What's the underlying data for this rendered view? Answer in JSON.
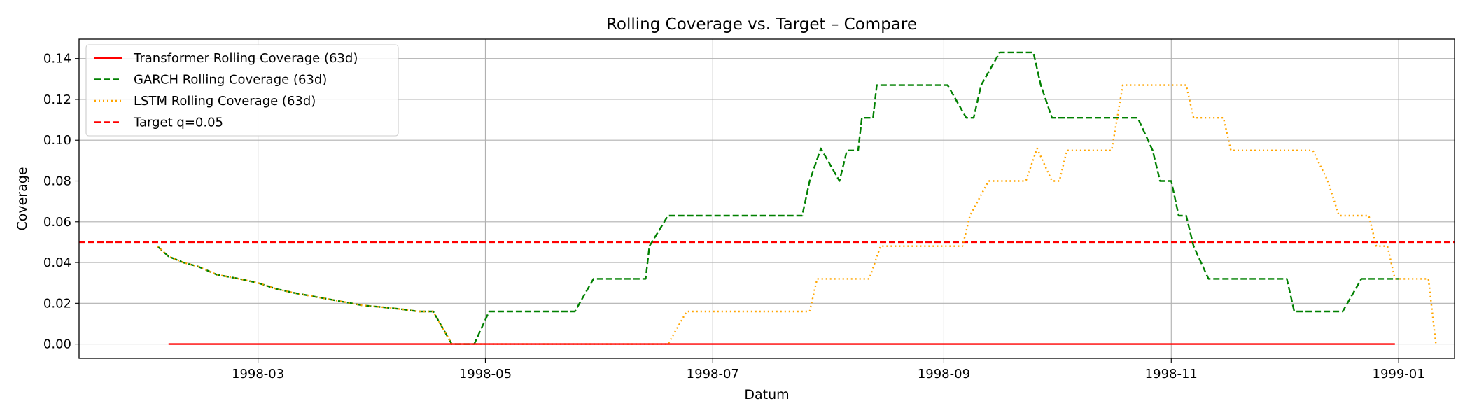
{
  "chart_data": {
    "type": "line",
    "title": "Rolling Coverage vs. Target – Compare",
    "xlabel": "Datum",
    "ylabel": "Coverage",
    "xlim": [
      "1998-01-12",
      "1999-01-16"
    ],
    "ylim": [
      -0.007,
      0.1495
    ],
    "x_ticks": [
      "1998-03-01",
      "1998-05-01",
      "1998-07-01",
      "1998-09-01",
      "1998-11-01",
      "1999-01-01"
    ],
    "x_tick_labels": [
      "1998-03",
      "1998-05",
      "1998-07",
      "1998-09",
      "1998-11",
      "1999-01"
    ],
    "y_ticks": [
      0.0,
      0.02,
      0.04,
      0.06,
      0.08,
      0.1,
      0.12,
      0.14
    ],
    "y_tick_labels": [
      "0.00",
      "0.02",
      "0.04",
      "0.06",
      "0.08",
      "0.10",
      "0.12",
      "0.14"
    ],
    "grid": true,
    "legend_position": "top-left",
    "series": [
      {
        "name": "Transformer Rolling Coverage (63d)",
        "color": "#ff0000",
        "style": "solid",
        "points": [
          [
            "1998-02-05",
            0.0
          ],
          [
            "1998-12-31",
            0.0
          ]
        ]
      },
      {
        "name": "GARCH Rolling Coverage (63d)",
        "color": "#008000",
        "style": "dashed",
        "points": [
          [
            "1998-02-02",
            0.048
          ],
          [
            "1998-02-05",
            0.043
          ],
          [
            "1998-02-09",
            0.04
          ],
          [
            "1998-02-13",
            0.038
          ],
          [
            "1998-02-18",
            0.034
          ],
          [
            "1998-02-24",
            0.032
          ],
          [
            "1998-03-01",
            0.03
          ],
          [
            "1998-03-06",
            0.027
          ],
          [
            "1998-03-11",
            0.025
          ],
          [
            "1998-03-17",
            0.023
          ],
          [
            "1998-03-23",
            0.021
          ],
          [
            "1998-03-29",
            0.019
          ],
          [
            "1998-04-04",
            0.018
          ],
          [
            "1998-04-09",
            0.017
          ],
          [
            "1998-04-13",
            0.016
          ],
          [
            "1998-04-17",
            0.016
          ],
          [
            "1998-04-22",
            0.0
          ],
          [
            "1998-04-28",
            0.0
          ],
          [
            "1998-05-02",
            0.016
          ],
          [
            "1998-05-25",
            0.016
          ],
          [
            "1998-05-30",
            0.032
          ],
          [
            "1998-06-13",
            0.032
          ],
          [
            "1998-06-14",
            0.048
          ],
          [
            "1998-06-19",
            0.063
          ],
          [
            "1998-07-25",
            0.063
          ],
          [
            "1998-07-27",
            0.08
          ],
          [
            "1998-07-30",
            0.096
          ],
          [
            "1998-08-04",
            0.08
          ],
          [
            "1998-08-06",
            0.095
          ],
          [
            "1998-08-09",
            0.095
          ],
          [
            "1998-08-10",
            0.111
          ],
          [
            "1998-08-13",
            0.111
          ],
          [
            "1998-08-14",
            0.127
          ],
          [
            "1998-09-02",
            0.127
          ],
          [
            "1998-09-07",
            0.111
          ],
          [
            "1998-09-09",
            0.111
          ],
          [
            "1998-09-11",
            0.127
          ],
          [
            "1998-09-16",
            0.143
          ],
          [
            "1998-09-25",
            0.143
          ],
          [
            "1998-09-27",
            0.127
          ],
          [
            "1998-09-30",
            0.111
          ],
          [
            "1998-10-23",
            0.111
          ],
          [
            "1998-10-27",
            0.095
          ],
          [
            "1998-10-29",
            0.08
          ],
          [
            "1998-11-01",
            0.08
          ],
          [
            "1998-11-03",
            0.063
          ],
          [
            "1998-11-05",
            0.063
          ],
          [
            "1998-11-07",
            0.048
          ],
          [
            "1998-11-11",
            0.032
          ],
          [
            "1998-12-02",
            0.032
          ],
          [
            "1998-12-04",
            0.016
          ],
          [
            "1998-12-17",
            0.016
          ],
          [
            "1998-12-22",
            0.032
          ],
          [
            "1999-01-01",
            0.032
          ]
        ]
      },
      {
        "name": "LSTM Rolling Coverage (63d)",
        "color": "#ffa500",
        "style": "dotted",
        "points": [
          [
            "1998-02-02",
            0.048
          ],
          [
            "1998-02-05",
            0.043
          ],
          [
            "1998-02-09",
            0.04
          ],
          [
            "1998-02-13",
            0.038
          ],
          [
            "1998-02-18",
            0.034
          ],
          [
            "1998-02-24",
            0.032
          ],
          [
            "1998-03-01",
            0.03
          ],
          [
            "1998-03-06",
            0.027
          ],
          [
            "1998-03-11",
            0.025
          ],
          [
            "1998-03-17",
            0.023
          ],
          [
            "1998-03-23",
            0.021
          ],
          [
            "1998-03-29",
            0.019
          ],
          [
            "1998-04-04",
            0.018
          ],
          [
            "1998-04-09",
            0.017
          ],
          [
            "1998-04-13",
            0.016
          ],
          [
            "1998-04-17",
            0.016
          ],
          [
            "1998-04-22",
            0.0
          ],
          [
            "1998-06-19",
            0.0
          ],
          [
            "1998-06-24",
            0.016
          ],
          [
            "1998-07-27",
            0.016
          ],
          [
            "1998-07-29",
            0.032
          ],
          [
            "1998-08-12",
            0.032
          ],
          [
            "1998-08-15",
            0.048
          ],
          [
            "1998-09-06",
            0.048
          ],
          [
            "1998-09-08",
            0.063
          ],
          [
            "1998-09-13",
            0.08
          ],
          [
            "1998-09-23",
            0.08
          ],
          [
            "1998-09-26",
            0.096
          ],
          [
            "1998-09-30",
            0.08
          ],
          [
            "1998-10-02",
            0.08
          ],
          [
            "1998-10-04",
            0.095
          ],
          [
            "1998-10-16",
            0.095
          ],
          [
            "1998-10-19",
            0.127
          ],
          [
            "1998-11-05",
            0.127
          ],
          [
            "1998-11-07",
            0.111
          ],
          [
            "1998-11-15",
            0.111
          ],
          [
            "1998-11-17",
            0.095
          ],
          [
            "1998-12-09",
            0.095
          ],
          [
            "1998-12-13",
            0.08
          ],
          [
            "1998-12-16",
            0.063
          ],
          [
            "1998-12-24",
            0.063
          ],
          [
            "1998-12-26",
            0.048
          ],
          [
            "1998-12-29",
            0.048
          ],
          [
            "1998-12-31",
            0.032
          ],
          [
            "1999-01-06",
            0.032
          ],
          [
            "1999-01-09",
            0.032
          ],
          [
            "1999-01-11",
            0.0
          ]
        ]
      },
      {
        "name": "Target q=0.05",
        "color": "#ff0000",
        "style": "dashed",
        "constant": 0.05
      }
    ]
  }
}
